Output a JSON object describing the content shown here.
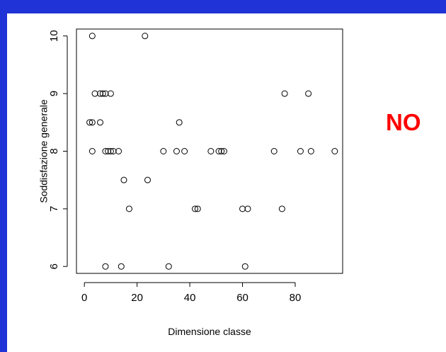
{
  "verdict": {
    "text": "NO",
    "color": "#ff0000"
  },
  "colors": {
    "frame": "#1f33d6",
    "panel": "#ffffff",
    "ink": "#000000"
  },
  "chart_data": {
    "type": "scatter",
    "title": "",
    "xlabel": "Dimensione classe",
    "ylabel": "Soddisfazione generale",
    "xlim": [
      -3,
      98
    ],
    "ylim": [
      5.88,
      10.12
    ],
    "xticks": [
      0,
      20,
      40,
      60,
      80
    ],
    "yticks": [
      6,
      7,
      8,
      9,
      10
    ],
    "grid": false,
    "marker": "open-circle",
    "points": [
      {
        "x": 3,
        "y": 10
      },
      {
        "x": 23,
        "y": 10
      },
      {
        "x": 4,
        "y": 9
      },
      {
        "x": 6,
        "y": 9
      },
      {
        "x": 7,
        "y": 9
      },
      {
        "x": 8,
        "y": 9
      },
      {
        "x": 10,
        "y": 9
      },
      {
        "x": 76,
        "y": 9
      },
      {
        "x": 85,
        "y": 9
      },
      {
        "x": 2,
        "y": 8.5
      },
      {
        "x": 3,
        "y": 8.5
      },
      {
        "x": 6,
        "y": 8.5
      },
      {
        "x": 36,
        "y": 8.5
      },
      {
        "x": 3,
        "y": 8
      },
      {
        "x": 8,
        "y": 8
      },
      {
        "x": 9,
        "y": 8
      },
      {
        "x": 10,
        "y": 8
      },
      {
        "x": 11,
        "y": 8
      },
      {
        "x": 13,
        "y": 8
      },
      {
        "x": 30,
        "y": 8
      },
      {
        "x": 35,
        "y": 8
      },
      {
        "x": 38,
        "y": 8
      },
      {
        "x": 48,
        "y": 8
      },
      {
        "x": 51,
        "y": 8
      },
      {
        "x": 52,
        "y": 8
      },
      {
        "x": 53,
        "y": 8
      },
      {
        "x": 72,
        "y": 8
      },
      {
        "x": 82,
        "y": 8
      },
      {
        "x": 86,
        "y": 8
      },
      {
        "x": 95,
        "y": 8
      },
      {
        "x": 15,
        "y": 7.5
      },
      {
        "x": 24,
        "y": 7.5
      },
      {
        "x": 17,
        "y": 7
      },
      {
        "x": 42,
        "y": 7
      },
      {
        "x": 43,
        "y": 7
      },
      {
        "x": 60,
        "y": 7
      },
      {
        "x": 62,
        "y": 7
      },
      {
        "x": 75,
        "y": 7
      },
      {
        "x": 8,
        "y": 6
      },
      {
        "x": 14,
        "y": 6
      },
      {
        "x": 32,
        "y": 6
      },
      {
        "x": 61,
        "y": 6
      }
    ]
  }
}
